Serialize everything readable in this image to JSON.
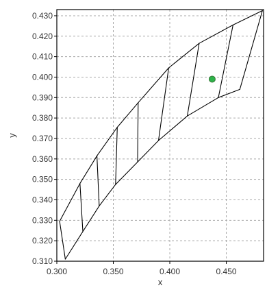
{
  "chart_data": {
    "type": "line",
    "title": "",
    "xlabel": "x",
    "ylabel": "y",
    "xlim": [
      0.3,
      0.483
    ],
    "ylim": [
      0.31,
      0.433
    ],
    "grid": true,
    "x_ticks": [
      0.3,
      0.35,
      0.4,
      0.45
    ],
    "x_tick_labels": [
      "0.300",
      "0.350",
      "0.400",
      "0.450"
    ],
    "y_ticks": [
      0.31,
      0.32,
      0.33,
      0.34,
      0.35,
      0.36,
      0.37,
      0.38,
      0.39,
      0.4,
      0.41,
      0.42,
      0.43
    ],
    "y_tick_labels": [
      "0.310",
      "0.320",
      "0.330",
      "0.340",
      "0.350",
      "0.360",
      "0.370",
      "0.380",
      "0.390",
      "0.400",
      "0.410",
      "0.420",
      "0.430"
    ],
    "boundary": {
      "upper": [
        [
          0.3025,
          0.3295
        ],
        [
          0.3205,
          0.348
        ],
        [
          0.3355,
          0.3615
        ],
        [
          0.3535,
          0.3755
        ],
        [
          0.372,
          0.3875
        ],
        [
          0.399,
          0.4045
        ],
        [
          0.426,
          0.4165
        ],
        [
          0.456,
          0.4255
        ],
        [
          0.482,
          0.4325
        ]
      ],
      "right": [
        [
          0.482,
          0.4325
        ],
        [
          0.462,
          0.394
        ]
      ],
      "lower": [
        [
          0.3075,
          0.311
        ],
        [
          0.323,
          0.3245
        ],
        [
          0.3375,
          0.337
        ],
        [
          0.352,
          0.3475
        ],
        [
          0.3715,
          0.3585
        ],
        [
          0.39,
          0.369
        ],
        [
          0.4155,
          0.381
        ],
        [
          0.443,
          0.39
        ],
        [
          0.462,
          0.394
        ]
      ],
      "left": [
        [
          0.3025,
          0.3295
        ],
        [
          0.3075,
          0.311
        ]
      ]
    },
    "divisions": [
      [
        [
          0.3205,
          0.348
        ],
        [
          0.323,
          0.3245
        ]
      ],
      [
        [
          0.3355,
          0.3615
        ],
        [
          0.3375,
          0.337
        ]
      ],
      [
        [
          0.3535,
          0.3755
        ],
        [
          0.352,
          0.3475
        ]
      ],
      [
        [
          0.372,
          0.3875
        ],
        [
          0.3715,
          0.3585
        ]
      ],
      [
        [
          0.399,
          0.4045
        ],
        [
          0.39,
          0.369
        ]
      ],
      [
        [
          0.426,
          0.4165
        ],
        [
          0.4155,
          0.381
        ]
      ],
      [
        [
          0.456,
          0.4255
        ],
        [
          0.443,
          0.39
        ]
      ]
    ],
    "points": [
      {
        "x": 0.4375,
        "y": 0.399,
        "color": "#2db34a"
      }
    ]
  }
}
